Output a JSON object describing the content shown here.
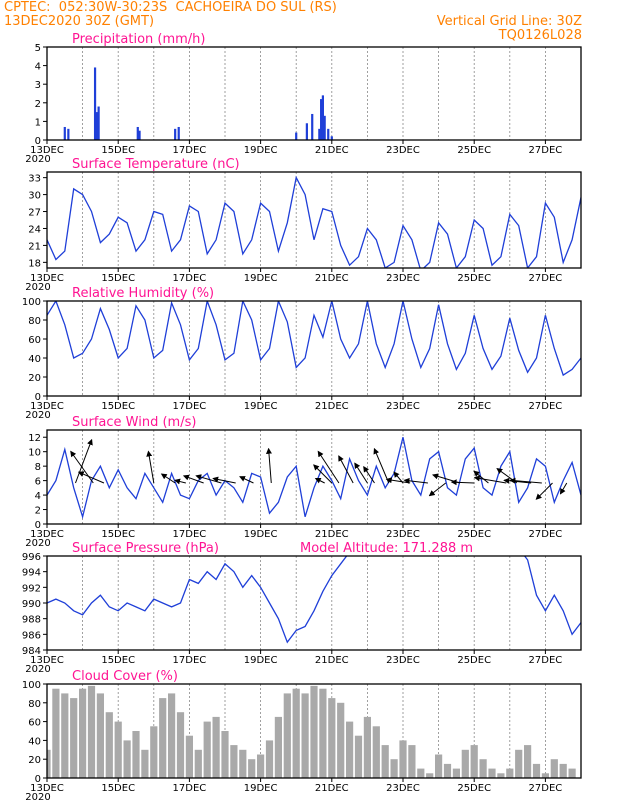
{
  "header": {
    "line1_left": "CPTEC:  052:30W-30:23S  CACHOEIRA DO SUL (RS)",
    "line2_left": "13DEC2020 30Z (GMT)",
    "line2_right": "Vertical Grid Line: 30Z",
    "line3_right": "TQ0126L028"
  },
  "colors": {
    "header": "#ff8000",
    "panel_title": "#ff1493",
    "series": "#1f3fd8",
    "cloud": "#a9a9a9",
    "arrow": "#000000"
  },
  "x_axis": {
    "tick_labels": [
      "13DEC",
      "15DEC",
      "17DEC",
      "19DEC",
      "21DEC",
      "23DEC",
      "25DEC",
      "27DEC"
    ],
    "cut_label": "2020",
    "range_days": [
      13.0,
      28.0
    ],
    "vertical_grid_days": [
      13.0,
      14.0,
      15.0,
      16.0,
      17.0,
      18.0,
      19.0,
      20.0,
      21.0,
      22.0,
      23.0,
      24.0,
      25.0,
      26.0,
      27.0
    ]
  },
  "chart_data": [
    {
      "type": "bar",
      "title": "Precipitation (mm/h)",
      "ylim": [
        0,
        5
      ],
      "yticks": [
        0,
        1,
        2,
        3,
        4,
        5
      ],
      "x_day": [
        13.5,
        13.6,
        14.35,
        14.4,
        14.45,
        15.55,
        15.6,
        16.6,
        16.7,
        20.0,
        20.3,
        20.45,
        20.65,
        20.7,
        20.75,
        20.8,
        20.9,
        21.0
      ],
      "values": [
        0.7,
        0.6,
        3.9,
        1.5,
        1.8,
        0.7,
        0.5,
        0.6,
        0.7,
        0.4,
        0.9,
        1.4,
        0.6,
        2.2,
        2.4,
        1.3,
        0.6,
        0.2
      ]
    },
    {
      "type": "line",
      "title": "Surface Temperature (nC)",
      "ylim": [
        17,
        34
      ],
      "yticks": [
        18,
        21,
        24,
        27,
        30,
        33
      ],
      "x_day": [
        13.0,
        13.25,
        13.5,
        13.75,
        14.0,
        14.25,
        14.5,
        14.75,
        15.0,
        15.25,
        15.5,
        15.75,
        16.0,
        16.25,
        16.5,
        16.75,
        17.0,
        17.25,
        17.5,
        17.75,
        18.0,
        18.25,
        18.5,
        18.75,
        19.0,
        19.25,
        19.5,
        19.75,
        20.0,
        20.25,
        20.5,
        20.75,
        21.0,
        21.25,
        21.5,
        21.75,
        22.0,
        22.25,
        22.5,
        22.75,
        23.0,
        23.25,
        23.5,
        23.75,
        24.0,
        24.25,
        24.5,
        24.75,
        25.0,
        25.25,
        25.5,
        25.75,
        26.0,
        26.25,
        26.5,
        26.75,
        27.0,
        27.25,
        27.5,
        27.75,
        28.0
      ],
      "values": [
        22.0,
        18.5,
        20.0,
        31.0,
        30.0,
        27.0,
        21.5,
        23.0,
        26.0,
        25.0,
        20.0,
        22.0,
        27.0,
        26.5,
        20.0,
        22.0,
        28.0,
        27.0,
        19.5,
        22.0,
        28.5,
        27.0,
        19.5,
        22.0,
        28.5,
        27.0,
        20.0,
        25.0,
        33.0,
        30.0,
        22.0,
        27.5,
        27.0,
        21.0,
        17.5,
        19.0,
        24.0,
        22.0,
        17.0,
        18.0,
        24.5,
        22.0,
        16.5,
        18.0,
        25.0,
        23.0,
        17.0,
        19.0,
        25.5,
        24.0,
        17.5,
        19.0,
        26.5,
        24.5,
        17.0,
        19.0,
        28.5,
        26.0,
        18.0,
        22.0,
        29.5
      ]
    },
    {
      "type": "line",
      "title": "Relative Humidity (%)",
      "ylim": [
        0,
        100
      ],
      "yticks": [
        0,
        20,
        40,
        60,
        80,
        100
      ],
      "x_day": [
        13.0,
        13.25,
        13.5,
        13.75,
        14.0,
        14.25,
        14.5,
        14.75,
        15.0,
        15.25,
        15.5,
        15.75,
        16.0,
        16.25,
        16.5,
        16.75,
        17.0,
        17.25,
        17.5,
        17.75,
        18.0,
        18.25,
        18.5,
        18.75,
        19.0,
        19.25,
        19.5,
        19.75,
        20.0,
        20.25,
        20.5,
        20.75,
        21.0,
        21.25,
        21.5,
        21.75,
        22.0,
        22.25,
        22.5,
        22.75,
        23.0,
        23.25,
        23.5,
        23.75,
        24.0,
        24.25,
        24.5,
        24.75,
        25.0,
        25.25,
        25.5,
        25.75,
        26.0,
        26.25,
        26.5,
        26.75,
        27.0,
        27.25,
        27.5,
        27.75,
        28.0
      ],
      "values": [
        85.0,
        100.0,
        75.0,
        40.0,
        45.0,
        60.0,
        92.0,
        70.0,
        40.0,
        50.0,
        95.0,
        80.0,
        40.0,
        48.0,
        98.0,
        75.0,
        38.0,
        50.0,
        100.0,
        75.0,
        38.0,
        45.0,
        100.0,
        80.0,
        38.0,
        50.0,
        100.0,
        78.0,
        30.0,
        40.0,
        85.0,
        62.0,
        100.0,
        60.0,
        40.0,
        55.0,
        100.0,
        55.0,
        30.0,
        55.0,
        100.0,
        60.0,
        30.0,
        50.0,
        96.0,
        55.0,
        28.0,
        45.0,
        85.0,
        50.0,
        28.0,
        42.0,
        82.0,
        48.0,
        25.0,
        40.0,
        85.0,
        50.0,
        22.0,
        28.0,
        40.0
      ]
    },
    {
      "type": "line",
      "title": "Surface Wind (m/s)",
      "ylim": [
        0,
        13
      ],
      "yticks": [
        0,
        2,
        4,
        6,
        8,
        10,
        12
      ],
      "x_day": [
        13.0,
        13.25,
        13.5,
        13.75,
        14.0,
        14.25,
        14.5,
        14.75,
        15.0,
        15.25,
        15.5,
        15.75,
        16.0,
        16.25,
        16.5,
        16.75,
        17.0,
        17.25,
        17.5,
        17.75,
        18.0,
        18.25,
        18.5,
        18.75,
        19.0,
        19.25,
        19.5,
        19.75,
        20.0,
        20.25,
        20.5,
        20.75,
        21.0,
        21.25,
        21.5,
        21.75,
        22.0,
        22.25,
        22.5,
        22.75,
        23.0,
        23.25,
        23.5,
        23.75,
        24.0,
        24.25,
        24.5,
        24.75,
        25.0,
        25.25,
        25.5,
        25.75,
        26.0,
        26.25,
        26.5,
        26.75,
        27.0,
        27.25,
        27.5,
        27.75,
        28.0
      ],
      "values": [
        4.0,
        6.0,
        10.3,
        5.0,
        1.0,
        6.0,
        8.0,
        5.0,
        7.5,
        5.0,
        3.5,
        7.0,
        5.0,
        3.0,
        7.0,
        4.0,
        3.5,
        6.0,
        7.0,
        4.0,
        6.0,
        5.0,
        3.0,
        7.0,
        6.5,
        1.5,
        3.0,
        6.5,
        8.0,
        1.0,
        5.0,
        8.0,
        6.0,
        3.5,
        9.0,
        6.0,
        4.0,
        8.0,
        5.0,
        7.0,
        12.0,
        6.0,
        4.0,
        9.0,
        10.0,
        5.0,
        4.0,
        9.0,
        10.5,
        5.0,
        4.0,
        8.0,
        10.0,
        3.0,
        5.0,
        9.0,
        8.0,
        3.0,
        6.0,
        8.5,
        4.0
      ],
      "wind_arrows_u_v": [
        [
          13.8,
          -1.8,
          4.8
        ],
        [
          14.3,
          2.5,
          3.5
        ],
        [
          14.6,
          2.8,
          1.2
        ],
        [
          16.0,
          0.6,
          3.5
        ],
        [
          16.6,
          1.5,
          1.0
        ],
        [
          16.9,
          1.2,
          0.3
        ],
        [
          17.4,
          2.2,
          0.8
        ],
        [
          17.9,
          2.8,
          0.8
        ],
        [
          18.3,
          2.5,
          0.5
        ],
        [
          18.8,
          1.5,
          0.7
        ],
        [
          19.3,
          0.3,
          3.8
        ],
        [
          20.8,
          1.0,
          0.5
        ],
        [
          21.0,
          2.0,
          2.0
        ],
        [
          21.2,
          2.3,
          3.5
        ],
        [
          21.6,
          1.6,
          3.0
        ],
        [
          22.0,
          1.4,
          2.2
        ],
        [
          22.2,
          1.2,
          1.8
        ],
        [
          22.6,
          1.6,
          3.8
        ],
        [
          23.0,
          1.0,
          1.2
        ],
        [
          23.2,
          2.6,
          0.4
        ],
        [
          23.7,
          2.6,
          0.3
        ],
        [
          24.2,
          1.8,
          -1.4
        ],
        [
          24.6,
          3.0,
          0.9
        ],
        [
          25.0,
          2.5,
          0.1
        ],
        [
          25.4,
          1.6,
          1.3
        ],
        [
          25.9,
          3.5,
          0.6
        ],
        [
          26.2,
          2.2,
          1.6
        ],
        [
          26.6,
          3.0,
          0.3
        ],
        [
          26.9,
          3.5,
          0.3
        ],
        [
          27.2,
          1.8,
          -1.8
        ],
        [
          27.6,
          0.7,
          -1.2
        ]
      ]
    },
    {
      "type": "line",
      "title": "Surface Pressure (hPa)",
      "subtitle": "Model Altitude: 171.288 m",
      "ylim": [
        984,
        996
      ],
      "yticks": [
        984,
        986,
        988,
        990,
        992,
        994,
        996
      ],
      "x_day": [
        13.0,
        13.25,
        13.5,
        13.75,
        14.0,
        14.25,
        14.5,
        14.75,
        15.0,
        15.25,
        15.5,
        15.75,
        16.0,
        16.25,
        16.5,
        16.75,
        17.0,
        17.25,
        17.5,
        17.75,
        18.0,
        18.25,
        18.5,
        18.75,
        19.0,
        19.25,
        19.5,
        19.75,
        20.0,
        20.25,
        20.5,
        20.75,
        21.0,
        21.25,
        21.5,
        21.75,
        22.0,
        22.25,
        22.5,
        22.75,
        23.0,
        23.25,
        23.5,
        23.75,
        24.0,
        24.25,
        24.5,
        24.75,
        25.0,
        25.25,
        25.5,
        25.75,
        26.0,
        26.25,
        26.5,
        26.75,
        27.0,
        27.25,
        27.5,
        27.75,
        28.0
      ],
      "values": [
        990.0,
        990.5,
        990.0,
        989.0,
        988.5,
        990.0,
        991.0,
        989.5,
        989.0,
        990.0,
        989.5,
        989.0,
        990.5,
        990.0,
        989.5,
        990.0,
        993.0,
        992.5,
        994.0,
        993.0,
        995.0,
        994.0,
        992.0,
        993.5,
        992.0,
        990.0,
        988.0,
        985.0,
        986.5,
        987.0,
        989.0,
        991.5,
        993.5,
        995.0,
        996.5,
        997.0,
        997.5,
        997.0,
        997.5,
        996.5,
        997.0,
        997.5,
        997.0,
        996.5,
        997.0,
        997.5,
        996.0,
        997.0,
        997.5,
        997.0,
        997.5,
        997.0,
        996.5,
        997.0,
        995.5,
        991.0,
        989.0,
        991.0,
        989.0,
        986.0,
        987.5
      ]
    },
    {
      "type": "bar",
      "title": "Cloud Cover (%)",
      "ylim": [
        0,
        100
      ],
      "yticks": [
        0,
        20,
        40,
        60,
        80,
        100
      ],
      "x_day": [
        13.0,
        13.25,
        13.5,
        13.75,
        14.0,
        14.25,
        14.5,
        14.75,
        15.0,
        15.25,
        15.5,
        15.75,
        16.0,
        16.25,
        16.5,
        16.75,
        17.0,
        17.25,
        17.5,
        17.75,
        18.0,
        18.25,
        18.5,
        18.75,
        19.0,
        19.25,
        19.5,
        19.75,
        20.0,
        20.25,
        20.5,
        20.75,
        21.0,
        21.25,
        21.5,
        21.75,
        22.0,
        22.25,
        22.5,
        22.75,
        23.0,
        23.25,
        23.5,
        23.75,
        24.0,
        24.25,
        24.5,
        24.75,
        25.0,
        25.25,
        25.5,
        25.75,
        26.0,
        26.25,
        26.5,
        26.75,
        27.0,
        27.25,
        27.5,
        27.75,
        28.0
      ],
      "values": [
        30.0,
        95.0,
        90.0,
        85.0,
        95.0,
        98.0,
        90.0,
        70.0,
        60.0,
        40.0,
        50.0,
        30.0,
        55.0,
        85.0,
        90.0,
        70.0,
        45.0,
        30.0,
        60.0,
        65.0,
        50.0,
        35.0,
        30.0,
        20.0,
        25.0,
        40.0,
        65.0,
        90.0,
        95.0,
        90.0,
        98.0,
        95.0,
        85.0,
        80.0,
        60.0,
        45.0,
        65.0,
        55.0,
        35.0,
        20.0,
        40.0,
        35.0,
        10.0,
        5.0,
        25.0,
        15.0,
        10.0,
        30.0,
        35.0,
        20.0,
        10.0,
        5.0,
        10.0,
        30.0,
        35.0,
        15.0,
        5.0,
        20.0,
        15.0,
        10.0,
        0.0
      ]
    }
  ]
}
